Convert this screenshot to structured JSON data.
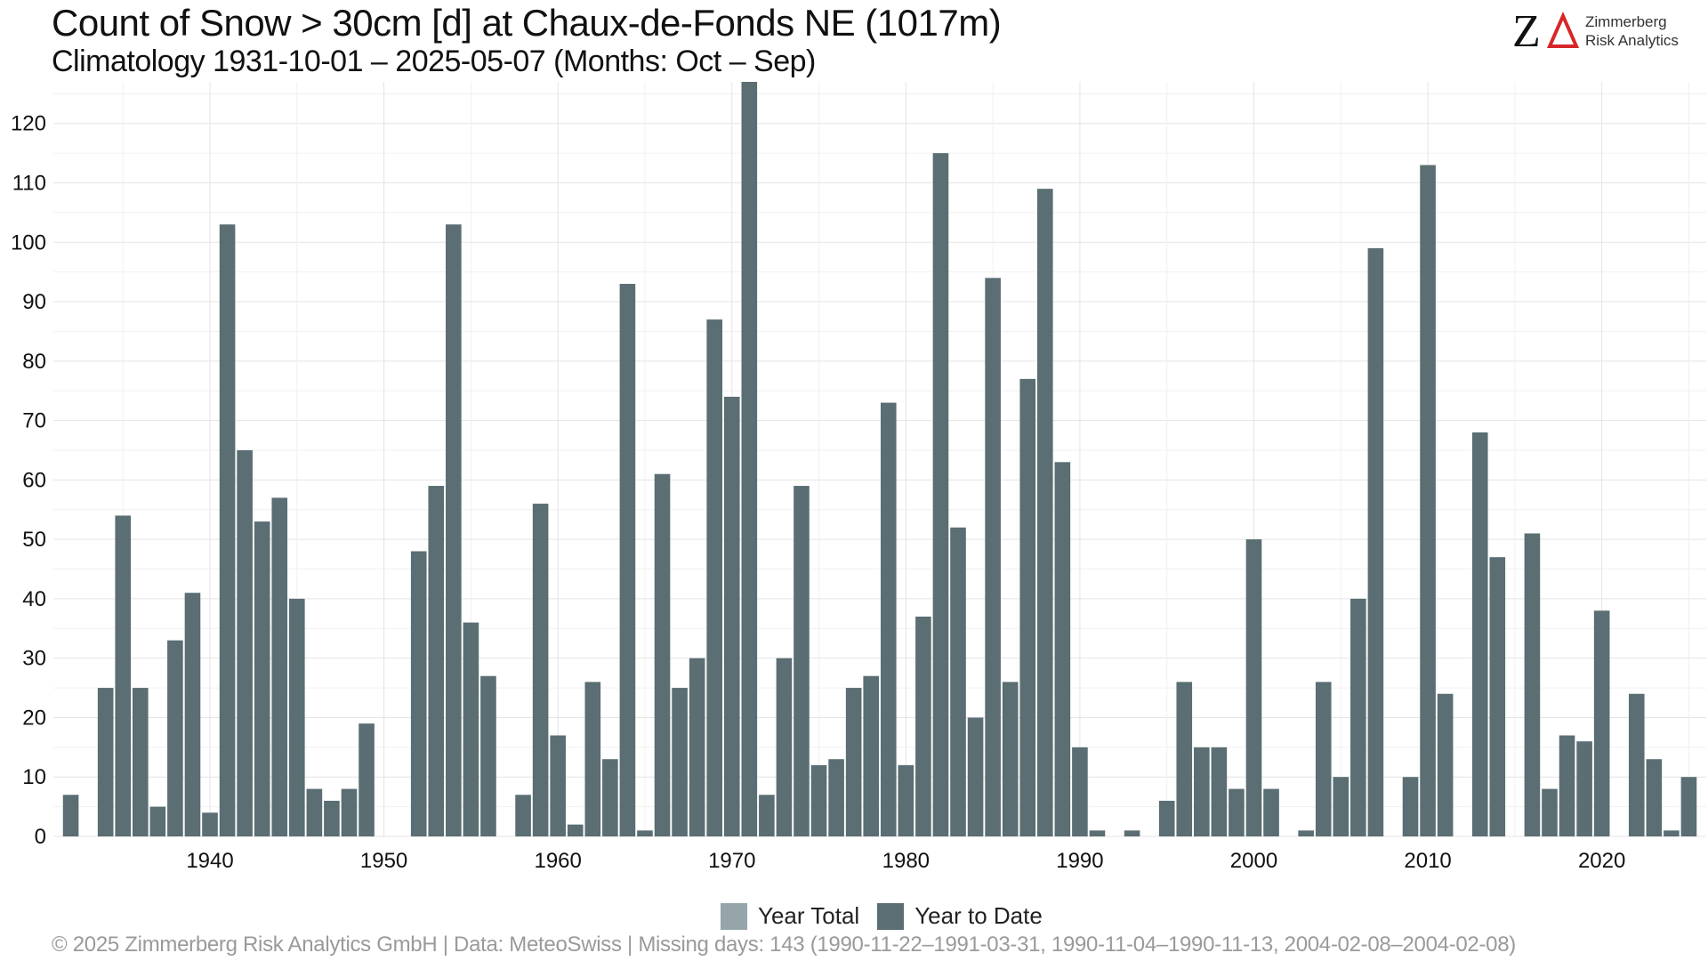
{
  "header": {
    "title": "Count of Snow > 30cm [d] at Chaux-de-Fonds  NE (1017m)",
    "subtitle": "Climatology 1931-10-01 – 2025-05-07 (Months: Oct – Sep)"
  },
  "logo": {
    "mark": "ZΔ",
    "line1": "Zimmerberg",
    "line2": "Risk Analytics",
    "colors": {
      "z": "#111111",
      "delta": "#d62728"
    }
  },
  "legend": {
    "items": [
      {
        "label": "Year Total",
        "color": "#95a5aa"
      },
      {
        "label": "Year to Date",
        "color": "#5a6e73"
      }
    ]
  },
  "footer": {
    "text": "©  2025 Zimmerberg Risk Analytics GmbH | Data: MeteoSwiss | Missing days: 143 (1990-11-22–1991-03-31, 1990-11-04–1990-11-13, 2004-02-08–2004-02-08)"
  },
  "chart_data": {
    "type": "bar",
    "xlim": [
      1931,
      2026
    ],
    "ylim": [
      0,
      127
    ],
    "x_ticks": [
      1940,
      1950,
      1960,
      1970,
      1980,
      1990,
      2000,
      2010,
      2020
    ],
    "y_ticks": [
      0,
      10,
      20,
      30,
      40,
      50,
      60,
      70,
      80,
      90,
      100,
      110,
      120
    ],
    "grid": true,
    "legend_position": "bottom",
    "bar_color": "#5a6e73",
    "grid_color": "#e4e4e4",
    "series": [
      {
        "name": "Year to Date",
        "x": [
          1932,
          1933,
          1934,
          1935,
          1936,
          1937,
          1938,
          1939,
          1940,
          1941,
          1942,
          1943,
          1944,
          1945,
          1946,
          1947,
          1948,
          1949,
          1950,
          1951,
          1952,
          1953,
          1954,
          1955,
          1956,
          1957,
          1958,
          1959,
          1960,
          1961,
          1962,
          1963,
          1964,
          1965,
          1966,
          1967,
          1968,
          1969,
          1970,
          1971,
          1972,
          1973,
          1974,
          1975,
          1976,
          1977,
          1978,
          1979,
          1980,
          1981,
          1982,
          1983,
          1984,
          1985,
          1986,
          1987,
          1988,
          1989,
          1990,
          1991,
          1992,
          1993,
          1994,
          1995,
          1996,
          1997,
          1998,
          1999,
          2000,
          2001,
          2002,
          2003,
          2004,
          2005,
          2006,
          2007,
          2008,
          2009,
          2010,
          2011,
          2012,
          2013,
          2014,
          2015,
          2016,
          2017,
          2018,
          2019,
          2020,
          2021,
          2022,
          2023,
          2024,
          2025
        ],
        "values": [
          7,
          0,
          25,
          54,
          25,
          5,
          33,
          41,
          4,
          103,
          65,
          53,
          57,
          40,
          8,
          6,
          8,
          19,
          0,
          0,
          48,
          59,
          103,
          36,
          27,
          0,
          7,
          56,
          17,
          2,
          26,
          13,
          93,
          1,
          61,
          25,
          30,
          87,
          74,
          127,
          7,
          30,
          59,
          12,
          13,
          25,
          27,
          73,
          12,
          37,
          115,
          52,
          20,
          94,
          26,
          77,
          109,
          63,
          15,
          1,
          0,
          1,
          0,
          6,
          26,
          15,
          15,
          8,
          50,
          8,
          0,
          1,
          26,
          10,
          40,
          99,
          0,
          10,
          113,
          24,
          0,
          68,
          47,
          0,
          51,
          8,
          17,
          16,
          38,
          0,
          24,
          13,
          1,
          10
        ]
      }
    ]
  }
}
